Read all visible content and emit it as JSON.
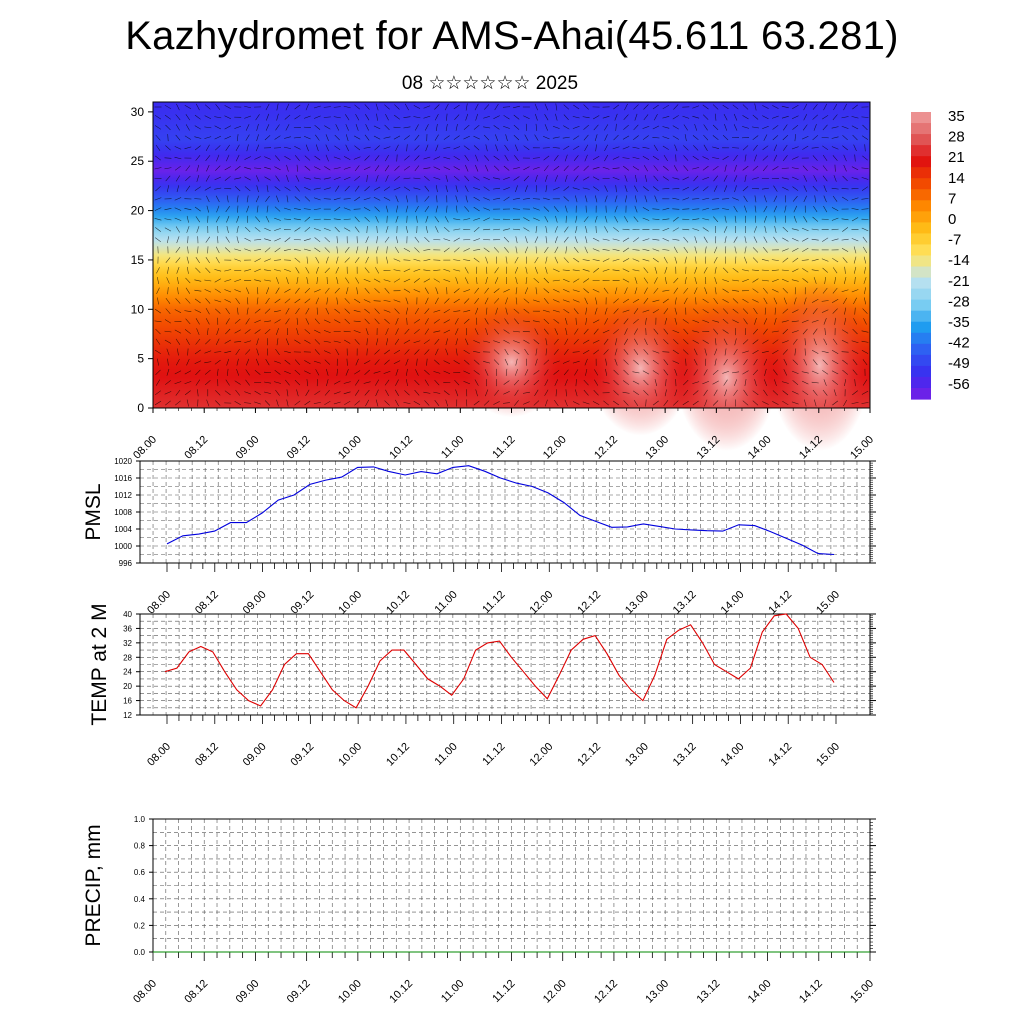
{
  "header": {
    "title": "Kazhydromet for AMS-Ahai(45.611 63.281)",
    "subtitle": "08 ☆☆☆☆☆☆ 2025"
  },
  "colors": {
    "pmsl_line": "#0000dd",
    "temp_line": "#dd0000",
    "precip_line": "#008800",
    "wind_arrows": "#000000",
    "cross_section_palette": [
      "#7a1fe6",
      "#3a2bf0",
      "#2f5cf2",
      "#1f9cf0",
      "#7fd0f2",
      "#bfe3f0",
      "#ffe566",
      "#ffc21a",
      "#ff8c00",
      "#f24a00",
      "#e01010",
      "#e06060",
      "#f0a0a0"
    ]
  },
  "chart_data": [
    {
      "id": "cross_section",
      "type": "heatmap",
      "title": "",
      "xlabel": "",
      "ylabel": "",
      "x_tick_labels": [
        "08.00",
        "08.12",
        "09.00",
        "09.12",
        "10.00",
        "10.12",
        "11.00",
        "11.12",
        "12.00",
        "12.12",
        "13.00",
        "13.12",
        "14.00",
        "14.12",
        "15.00"
      ],
      "y_ticks": [
        0,
        5,
        10,
        15,
        20,
        25,
        30
      ],
      "ylim": [
        0,
        31
      ],
      "colorbar": {
        "labels": [
          "35",
          "28",
          "21",
          "14",
          "7",
          "0",
          "-7",
          "-14",
          "-21",
          "-28",
          "-35",
          "-42",
          "-49",
          "-56"
        ],
        "range": [
          -60,
          38
        ]
      },
      "temperature_profile": [
        {
          "level": 0,
          "value": 25
        },
        {
          "level": 5,
          "value": 20
        },
        {
          "level": 10,
          "value": 10
        },
        {
          "level": 14,
          "value": -5
        },
        {
          "level": 17,
          "value": -20
        },
        {
          "level": 20,
          "value": -38
        },
        {
          "level": 24,
          "value": -58
        },
        {
          "level": 27,
          "value": -48
        },
        {
          "level": 31,
          "value": -52
        }
      ],
      "overlay": "wind vectors"
    },
    {
      "id": "pmsl",
      "type": "line",
      "title": "",
      "ylabel": "PMSL",
      "x_tick_labels": [
        "08.00",
        "08.12",
        "09.00",
        "09.12",
        "10.00",
        "10.12",
        "11.00",
        "11.12",
        "12.00",
        "12.12",
        "13.00",
        "13.12",
        "14.00",
        " 14.12",
        "15.00"
      ],
      "y_ticks": [
        996,
        1000,
        1004,
        1008,
        1012,
        1016,
        1020
      ],
      "ylim": [
        996,
        1020
      ],
      "grid": true,
      "x_step_hours": 3,
      "series": [
        {
          "values": [
            1000.5,
            1002.4,
            1002.8,
            1003.5,
            1005.5,
            1005.5,
            1007.8,
            1010.8,
            1012.0,
            1014.5,
            1015.5,
            1016.2,
            1018.5,
            1018.6,
            1017.5,
            1016.7,
            1017.5,
            1017.0,
            1018.5,
            1018.9,
            1017.6,
            1016.0,
            1014.8,
            1014.0,
            1012.5,
            1010.2,
            1007.2,
            1005.8,
            1004.4,
            1004.5,
            1005.2,
            1004.6,
            1004.0,
            1003.8,
            1003.6,
            1003.5,
            1005.0,
            1004.8,
            1003.4,
            1001.8,
            1000.2,
            998.2,
            998.0
          ]
        }
      ]
    },
    {
      "id": "temp2m",
      "type": "line",
      "title": "",
      "ylabel": "TEMP at 2 M",
      "x_tick_labels": [
        "08.00",
        "08.12",
        "09.00",
        "09.12",
        "10.00",
        "10.12",
        "11.00",
        "11.12",
        "12.00",
        "12.12",
        "13.00",
        "13.12",
        "14.00",
        "14.12",
        "15.00"
      ],
      "y_ticks": [
        12,
        16,
        20,
        24,
        28,
        32,
        36,
        40
      ],
      "ylim": [
        12,
        40
      ],
      "grid": true,
      "x_step_hours": 3,
      "series": [
        {
          "values": [
            24,
            25,
            29.5,
            31,
            29.5,
            24,
            19,
            16,
            14.5,
            19,
            26,
            29,
            29,
            24,
            19,
            16,
            14,
            20,
            27,
            30,
            30,
            26,
            22,
            20,
            17.5,
            22,
            30,
            32,
            32.5,
            28,
            24,
            20,
            16.5,
            23,
            30,
            33,
            34,
            29,
            23,
            19,
            16,
            23,
            33,
            35.5,
            37,
            32,
            26,
            24,
            22,
            25,
            35,
            39.5,
            40,
            36,
            28,
            26,
            21
          ]
        }
      ]
    },
    {
      "id": "precip",
      "type": "line",
      "title": "",
      "ylabel": "PRECIP, mm",
      "x_tick_labels": [
        "08.00",
        "08.12",
        "09.00",
        "09.12",
        "10.00",
        "10.12",
        "11.00",
        "11.12",
        "12.00",
        "12.12",
        "13.00",
        "13.12",
        "14.00",
        "14.12",
        "15.00"
      ],
      "y_tick_labels": [
        "0.0",
        "0.2",
        "0.4",
        "0.6",
        "0.8",
        "1.0"
      ],
      "ylim": [
        0,
        1.0
      ],
      "grid": true,
      "series": [
        {
          "values": [
            0,
            0,
            0,
            0,
            0,
            0,
            0,
            0,
            0,
            0,
            0,
            0,
            0,
            0,
            0
          ]
        }
      ]
    }
  ]
}
